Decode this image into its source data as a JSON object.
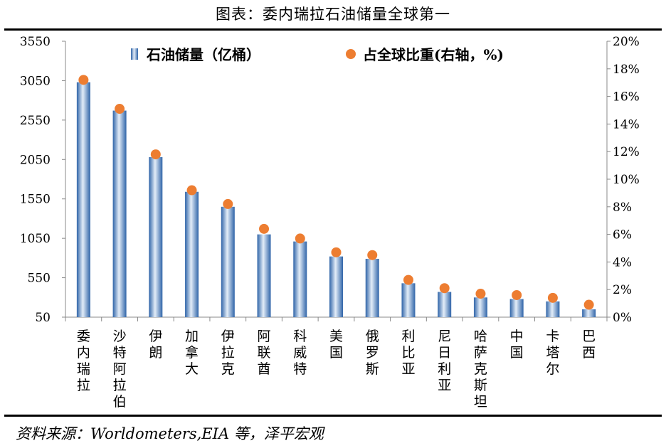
{
  "header": {
    "title": "图表：委内瑞拉石油储量全球第一"
  },
  "footer": {
    "source": "资料来源：Worldometers,EIA 等，泽平宏观"
  },
  "chart_data": {
    "type": "bar",
    "categories": [
      "委内瑞拉",
      "沙特阿拉伯",
      "伊朗",
      "加拿大",
      "伊拉克",
      "阿联酋",
      "科威特",
      "美国",
      "俄罗斯",
      "利比亚",
      "尼日利亚",
      "哈萨克斯坦",
      "中国",
      "卡塔尔",
      "巴西"
    ],
    "series": [
      {
        "name": "石油储量（亿桶）",
        "axis": "left",
        "kind": "bar",
        "values": [
          3030,
          2670,
          2080,
          1640,
          1450,
          1100,
          1010,
          820,
          790,
          480,
          370,
          300,
          280,
          250,
          150
        ]
      },
      {
        "name": "占全球比重(右轴，%)",
        "axis": "right",
        "kind": "scatter",
        "values": [
          17.2,
          15.1,
          11.8,
          9.2,
          8.2,
          6.4,
          5.7,
          4.7,
          4.5,
          2.7,
          2.1,
          1.7,
          1.6,
          1.4,
          0.9
        ]
      }
    ],
    "ylim": [
      50,
      3550
    ],
    "yticks": [
      "3550",
      "3050",
      "2550",
      "2050",
      "1550",
      "1050",
      "550",
      "50"
    ],
    "y2lim": [
      0,
      20
    ],
    "y2ticks": [
      "20%",
      "18%",
      "16%",
      "14%",
      "12%",
      "10%",
      "8%",
      "6%",
      "4%",
      "2%",
      "0%"
    ],
    "legend": "top",
    "grid": false,
    "colors": {
      "bar": "#4f86c6",
      "dot": "#ed7d31"
    }
  }
}
